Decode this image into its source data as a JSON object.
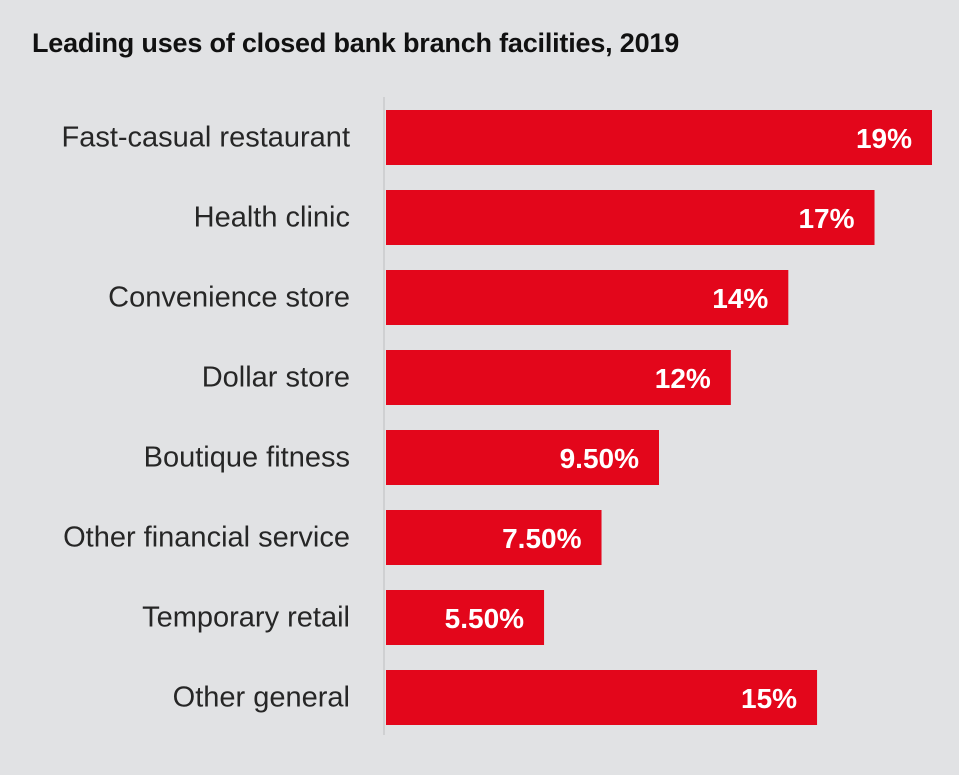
{
  "colors": {
    "background": "#e1e2e4",
    "bar": "#e3061b",
    "axis": "#cfd0d2",
    "label": "#262626",
    "value_label": "#ffffff"
  },
  "chart_data": {
    "type": "bar",
    "orientation": "horizontal",
    "title": "Leading uses of closed bank branch facilities, 2019",
    "xlabel": "",
    "ylabel": "",
    "grid": false,
    "legend": "none",
    "xlim": [
      0,
      19
    ],
    "categories": [
      "Fast-casual restaurant",
      "Health clinic",
      "Convenience store",
      "Dollar store",
      "Boutique fitness",
      "Other financial service",
      "Temporary retail",
      "Other general"
    ],
    "values": [
      19,
      17,
      14,
      12,
      9.5,
      7.5,
      5.5,
      15
    ],
    "data_labels": [
      "19%",
      "17%",
      "14%",
      "12%",
      "9.50%",
      "7.50%",
      "5.50%",
      "15%"
    ]
  }
}
